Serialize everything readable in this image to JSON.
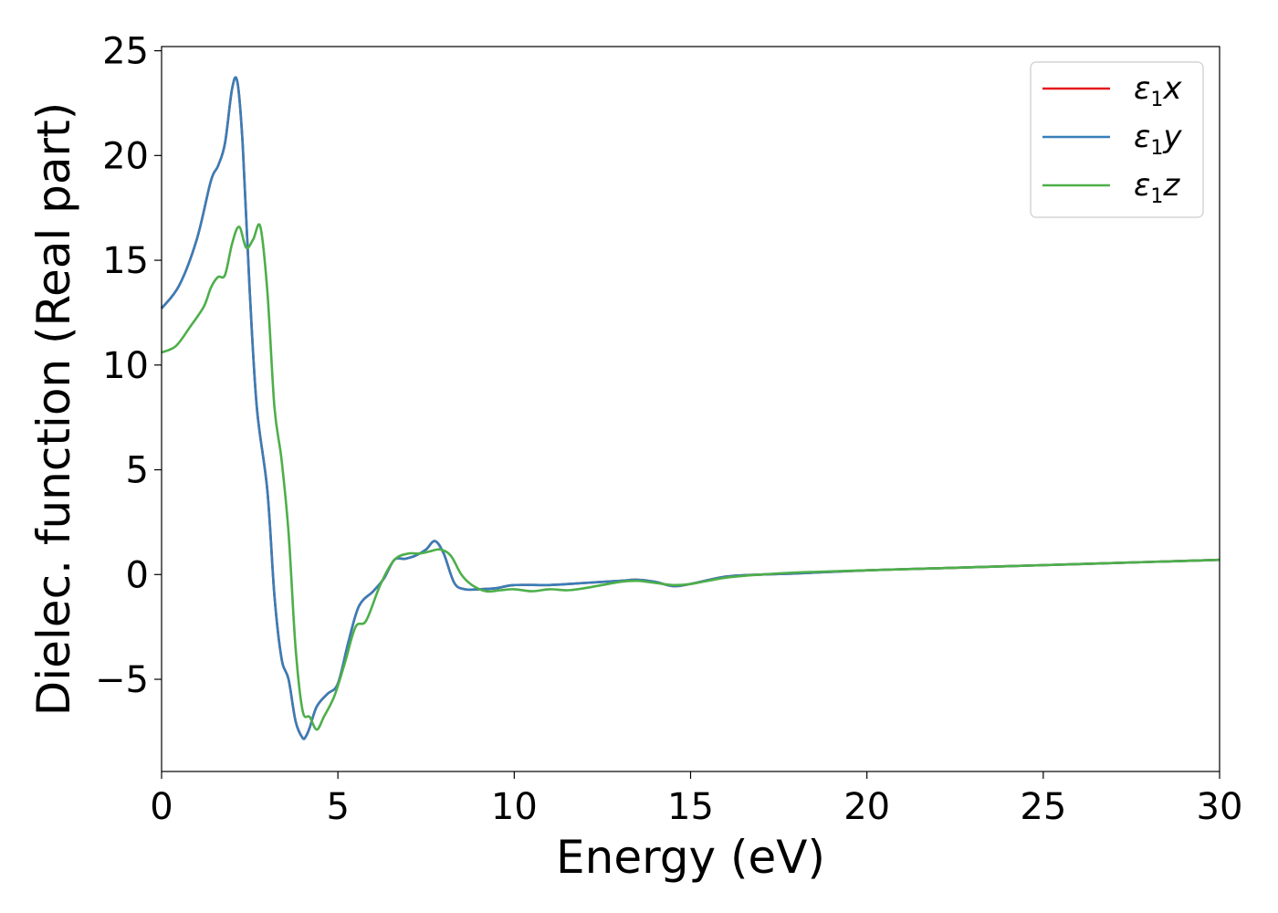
{
  "chart_data": {
    "type": "line",
    "xlabel": "Energy (eV)",
    "ylabel": "Dielec. function (Real part)",
    "xlim": [
      0,
      30
    ],
    "ylim": [
      -9.4,
      25.2
    ],
    "xticks": [
      0,
      5,
      10,
      15,
      20,
      25,
      30
    ],
    "xtick_labels": [
      "0",
      "5",
      "10",
      "15",
      "20",
      "25",
      "30"
    ],
    "yticks": [
      -5,
      0,
      5,
      10,
      15,
      20,
      25
    ],
    "ytick_labels": [
      "−5",
      "0",
      "5",
      "10",
      "15",
      "20",
      "25"
    ],
    "grid": false,
    "legend_position": "top-right",
    "series": [
      {
        "name": "ε1x",
        "legend": {
          "symbol": "ε",
          "sub": "1",
          "axis": "x"
        },
        "color": "#e41a1c",
        "x": [
          0,
          0.5,
          1.0,
          1.4,
          1.6,
          1.8,
          2.0,
          2.15,
          2.3,
          2.5,
          2.7,
          3.0,
          3.2,
          3.4,
          3.6,
          3.8,
          4.0,
          4.1,
          4.2,
          4.4,
          4.7,
          5.0,
          5.3,
          5.6,
          6.0,
          6.3,
          6.6,
          6.9,
          7.2,
          7.5,
          7.75,
          8.0,
          8.3,
          8.6,
          9.0,
          9.5,
          10.0,
          11.0,
          12.0,
          13.0,
          13.5,
          14.0,
          14.5,
          15.0,
          16.0,
          17.0,
          18.0,
          20.0,
          22.0,
          25.0,
          28.0,
          30.0
        ],
        "y": [
          12.7,
          13.8,
          16.0,
          18.8,
          19.5,
          20.6,
          23.2,
          23.5,
          20.5,
          13.5,
          8.0,
          4.0,
          -1.0,
          -4.0,
          -5.0,
          -7.0,
          -7.8,
          -7.7,
          -7.3,
          -6.3,
          -5.7,
          -5.2,
          -3.2,
          -1.5,
          -0.8,
          -0.2,
          0.7,
          0.75,
          0.9,
          1.2,
          1.6,
          1.0,
          -0.4,
          -0.7,
          -0.7,
          -0.65,
          -0.5,
          -0.5,
          -0.4,
          -0.3,
          -0.25,
          -0.35,
          -0.55,
          -0.45,
          -0.1,
          0.0,
          0.05,
          0.2,
          0.3,
          0.45,
          0.6,
          0.7
        ]
      },
      {
        "name": "ε1y",
        "legend": {
          "symbol": "ε",
          "sub": "1",
          "axis": "y"
        },
        "color": "#377eb8",
        "x": [
          0,
          0.5,
          1.0,
          1.4,
          1.6,
          1.8,
          2.0,
          2.15,
          2.3,
          2.5,
          2.7,
          3.0,
          3.2,
          3.4,
          3.6,
          3.8,
          4.0,
          4.1,
          4.2,
          4.4,
          4.7,
          5.0,
          5.3,
          5.6,
          6.0,
          6.3,
          6.6,
          6.9,
          7.2,
          7.5,
          7.75,
          8.0,
          8.3,
          8.6,
          9.0,
          9.5,
          10.0,
          11.0,
          12.0,
          13.0,
          13.5,
          14.0,
          14.5,
          15.0,
          16.0,
          17.0,
          18.0,
          20.0,
          22.0,
          25.0,
          28.0,
          30.0
        ],
        "y": [
          12.7,
          13.8,
          16.0,
          18.8,
          19.5,
          20.6,
          23.2,
          23.5,
          20.5,
          13.5,
          8.0,
          4.0,
          -1.0,
          -4.0,
          -5.0,
          -7.0,
          -7.8,
          -7.7,
          -7.3,
          -6.3,
          -5.7,
          -5.2,
          -3.2,
          -1.5,
          -0.8,
          -0.2,
          0.7,
          0.75,
          0.9,
          1.2,
          1.6,
          1.0,
          -0.4,
          -0.7,
          -0.7,
          -0.65,
          -0.5,
          -0.5,
          -0.4,
          -0.3,
          -0.25,
          -0.35,
          -0.55,
          -0.45,
          -0.1,
          0.0,
          0.05,
          0.2,
          0.3,
          0.45,
          0.6,
          0.7
        ]
      },
      {
        "name": "ε1z",
        "legend": {
          "symbol": "ε",
          "sub": "1",
          "axis": "z"
        },
        "color": "#4daf4a",
        "x": [
          0,
          0.4,
          0.8,
          1.2,
          1.4,
          1.6,
          1.8,
          2.0,
          2.2,
          2.4,
          2.6,
          2.8,
          3.0,
          3.2,
          3.4,
          3.6,
          3.8,
          4.0,
          4.2,
          4.4,
          4.6,
          4.9,
          5.2,
          5.5,
          5.8,
          6.2,
          6.6,
          7.0,
          7.3,
          7.6,
          7.9,
          8.2,
          8.5,
          8.8,
          9.2,
          9.6,
          10.0,
          10.5,
          11.0,
          11.5,
          12.0,
          13.0,
          13.5,
          14.0,
          14.5,
          15.0,
          16.0,
          17.0,
          18.0,
          20.0,
          22.0,
          25.0,
          28.0,
          30.0
        ],
        "y": [
          10.6,
          10.9,
          11.8,
          12.8,
          13.7,
          14.2,
          14.3,
          15.8,
          16.6,
          15.6,
          16.0,
          16.6,
          13.5,
          8.0,
          5.5,
          2.0,
          -3.5,
          -6.5,
          -6.8,
          -7.4,
          -6.8,
          -5.8,
          -4.2,
          -2.5,
          -2.2,
          -0.5,
          0.7,
          1.0,
          1.0,
          1.1,
          1.2,
          0.9,
          0.0,
          -0.5,
          -0.8,
          -0.75,
          -0.7,
          -0.8,
          -0.7,
          -0.75,
          -0.65,
          -0.35,
          -0.3,
          -0.4,
          -0.5,
          -0.45,
          -0.15,
          0.0,
          0.1,
          0.2,
          0.3,
          0.45,
          0.6,
          0.7
        ]
      }
    ]
  }
}
